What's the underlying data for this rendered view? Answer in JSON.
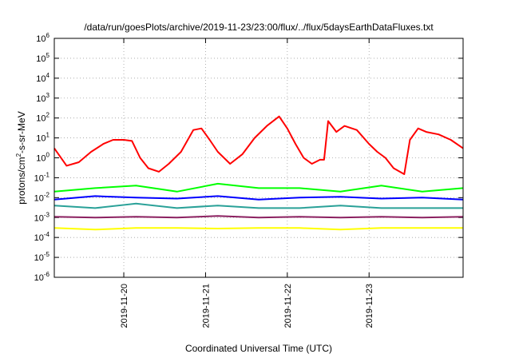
{
  "chart_data": {
    "type": "line",
    "title": "/data/run/goesPlots/archive/2019-11-23/23:00/flux/../flux/5daysEarthDataFluxes.txt",
    "xlabel": "Coordinated Universal Time (UTC)",
    "ylabel": {
      "pre": "protons/cm",
      "sup": "2",
      "post": "-s-sr-MeV"
    },
    "yscale": "log",
    "ylim": [
      1e-06,
      1000000.0
    ],
    "ytick_base": "10",
    "ytick_exponents": [
      "-6",
      "-5",
      "-4",
      "-3",
      "-2",
      "-1",
      "0",
      "1",
      "2",
      "3",
      "4",
      "5",
      "6"
    ],
    "xlim": [
      0,
      5
    ],
    "xticks": [
      {
        "x": 0.85,
        "label": "2019-11-20"
      },
      {
        "x": 1.85,
        "label": "2019-11-21"
      },
      {
        "x": 2.85,
        "label": "2019-11-22"
      },
      {
        "x": 3.85,
        "label": "2019-11-23"
      }
    ],
    "grid": true,
    "series": [
      {
        "color": "#ff0000",
        "x": [
          0,
          0.15,
          0.3,
          0.45,
          0.6,
          0.72,
          0.85,
          0.95,
          1.05,
          1.15,
          1.28,
          1.4,
          1.55,
          1.7,
          1.8,
          1.9,
          2.0,
          2.15,
          2.3,
          2.45,
          2.6,
          2.75,
          2.85,
          2.95,
          3.05,
          3.15,
          3.25,
          3.3,
          3.35,
          3.45,
          3.55,
          3.7,
          3.85,
          3.95,
          4.05,
          4.15,
          4.28,
          4.35,
          4.45,
          4.55,
          4.7,
          4.85,
          5.0
        ],
        "y": [
          3,
          0.4,
          0.6,
          2,
          5,
          8,
          8,
          7,
          1,
          0.3,
          0.2,
          0.5,
          2,
          25,
          30,
          8,
          2,
          0.5,
          1.5,
          10,
          40,
          120,
          30,
          5,
          1,
          0.5,
          0.8,
          0.8,
          70,
          20,
          40,
          25,
          5,
          2,
          1,
          0.3,
          0.15,
          8,
          30,
          20,
          15,
          8,
          3
        ]
      },
      {
        "color": "#00ff00",
        "x": [
          0,
          0.5,
          1.0,
          1.5,
          2.0,
          2.5,
          3.0,
          3.5,
          4.0,
          4.5,
          5.0
        ],
        "y": [
          0.02,
          0.03,
          0.04,
          0.02,
          0.05,
          0.03,
          0.03,
          0.02,
          0.04,
          0.02,
          0.03
        ]
      },
      {
        "color": "#0000ff",
        "x": [
          0,
          0.5,
          1.0,
          1.5,
          2.0,
          2.5,
          3.0,
          3.5,
          4.0,
          4.5,
          5.0
        ],
        "y": [
          0.008,
          0.012,
          0.01,
          0.009,
          0.012,
          0.008,
          0.01,
          0.011,
          0.009,
          0.01,
          0.008
        ]
      },
      {
        "color": "#2aa198",
        "x": [
          0,
          0.5,
          1.0,
          1.5,
          2.0,
          2.5,
          3.0,
          3.5,
          4.0,
          4.5,
          5.0
        ],
        "y": [
          0.004,
          0.003,
          0.005,
          0.003,
          0.004,
          0.003,
          0.003,
          0.004,
          0.003,
          0.003,
          0.003
        ]
      },
      {
        "color": "#8b2060",
        "x": [
          0,
          0.5,
          1.0,
          1.5,
          2.0,
          2.5,
          3.0,
          3.5,
          4.0,
          4.5,
          5.0
        ],
        "y": [
          0.0011,
          0.001,
          0.0011,
          0.001,
          0.0012,
          0.001,
          0.0011,
          0.001,
          0.0011,
          0.001,
          0.0011
        ]
      },
      {
        "color": "#ffff00",
        "x": [
          0,
          0.5,
          1.0,
          1.5,
          2.0,
          2.5,
          3.0,
          3.5,
          4.0,
          4.5,
          5.0
        ],
        "y": [
          0.0003,
          0.00025,
          0.0003,
          0.0003,
          0.00028,
          0.0003,
          0.0003,
          0.00025,
          0.0003,
          0.0003,
          0.0003
        ]
      }
    ]
  }
}
